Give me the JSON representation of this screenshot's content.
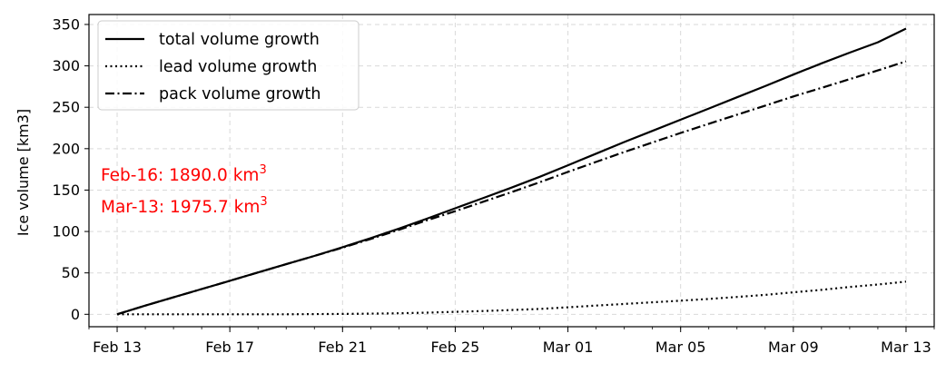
{
  "chart_data": {
    "type": "line",
    "title": "",
    "xlabel": "",
    "ylabel": "Ice volume [km3]",
    "x_type": "date",
    "xlim": [
      "2023-02-12",
      "2023-03-14"
    ],
    "ylim": [
      -15,
      362
    ],
    "yticks": [
      0,
      50,
      100,
      150,
      200,
      250,
      300,
      350
    ],
    "xticks": [
      {
        "date": "2023-02-13",
        "label": "Feb 13"
      },
      {
        "date": "2023-02-17",
        "label": "Feb 17"
      },
      {
        "date": "2023-02-21",
        "label": "Feb 21"
      },
      {
        "date": "2023-02-25",
        "label": "Feb 25"
      },
      {
        "date": "2023-03-01",
        "label": "Mar 01"
      },
      {
        "date": "2023-03-05",
        "label": "Mar 05"
      },
      {
        "date": "2023-03-09",
        "label": "Mar 09"
      },
      {
        "date": "2023-03-13",
        "label": "Mar 13"
      }
    ],
    "grid": true,
    "legend_position": "top-left",
    "x": [
      "2023-02-13",
      "2023-02-14",
      "2023-02-15",
      "2023-02-16",
      "2023-02-17",
      "2023-02-18",
      "2023-02-19",
      "2023-02-20",
      "2023-02-21",
      "2023-02-22",
      "2023-02-23",
      "2023-02-24",
      "2023-02-25",
      "2023-02-26",
      "2023-02-27",
      "2023-02-28",
      "2023-03-01",
      "2023-03-02",
      "2023-03-03",
      "2023-03-04",
      "2023-03-05",
      "2023-03-06",
      "2023-03-07",
      "2023-03-08",
      "2023-03-09",
      "2023-03-10",
      "2023-03-11",
      "2023-03-12",
      "2023-03-13"
    ],
    "series": [
      {
        "name": "total volume growth",
        "style": "solid",
        "color": "#000000",
        "values": [
          0,
          10.5,
          20.5,
          30.5,
          40.5,
          50.5,
          60.5,
          70.5,
          81,
          92,
          103.5,
          115.5,
          128,
          140.5,
          153,
          166,
          180,
          194,
          208,
          221.5,
          235,
          248.5,
          262,
          275.5,
          289.5,
          303,
          316,
          328.5,
          345
        ]
      },
      {
        "name": "lead volume growth",
        "style": "dotted",
        "color": "#000000",
        "values": [
          0,
          0,
          0,
          0,
          0,
          0,
          0,
          0.2,
          0.5,
          0.8,
          1.2,
          2,
          3,
          4,
          5.2,
          6.5,
          8.5,
          10.5,
          12.5,
          14.5,
          16.5,
          18.5,
          21,
          23.5,
          26.5,
          29.5,
          33,
          36,
          39.5
        ]
      },
      {
        "name": "pack volume growth",
        "style": "dashdot",
        "color": "#000000",
        "values": [
          0,
          10.5,
          20.5,
          30.5,
          40.5,
          50.5,
          60.5,
          70.5,
          80.5,
          91,
          102,
          113.5,
          124.5,
          136,
          147.5,
          159.5,
          172,
          184,
          196,
          207.5,
          219,
          230,
          241,
          252,
          263,
          273.5,
          284,
          294.5,
          305.5
        ]
      }
    ],
    "annotations": [
      {
        "text_main": "Feb-16: 1890.0 km",
        "sup": "3",
        "color": "#ff0000"
      },
      {
        "text_main": "Mar-13: 1975.7 km",
        "sup": "3",
        "color": "#ff0000"
      }
    ]
  }
}
